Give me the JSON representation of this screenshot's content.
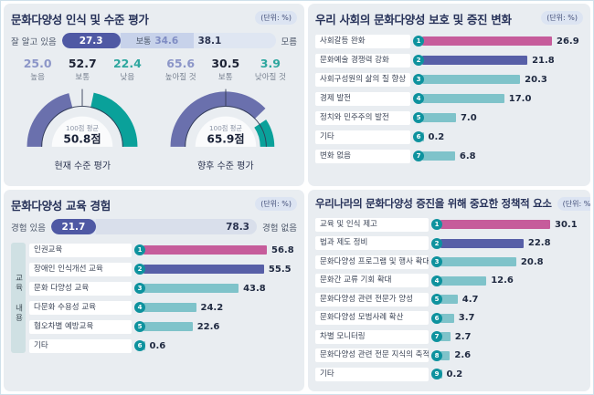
{
  "unit_label": "(단위: %)",
  "palette": {
    "pink": "#c65c9b",
    "purple": "#575fa7",
    "teal": "#7fc3ca",
    "badge_teal": "#0e929e",
    "stat_periwinkle": "#8c96c8",
    "stat_dark": "#1d2335",
    "stat_teal": "#2ea79f",
    "gauge_purple": "#6a70ad",
    "gauge_teal": "#0aa19a"
  },
  "chart_data": [
    {
      "id": "awareness",
      "type": "bar",
      "subtype": "stacked-bar-with-gauges",
      "title": "문화다양성 인식 및 수준 평가",
      "unit": "(단위: %)",
      "stacked_bar": {
        "left_label": "잘 알고 있음",
        "right_label": "모름",
        "categories": [
          "잘 알고 있음",
          "보통",
          "모름"
        ],
        "values": [
          27.3,
          34.6,
          38.1
        ],
        "seg1": {
          "value": 27.3,
          "text": "27.3"
        },
        "seg2": {
          "value": 34.6,
          "label": "보통",
          "text": "34.6"
        },
        "seg3": {
          "value": 38.1,
          "text": "38.1"
        }
      },
      "stat_groups": [
        {
          "items": [
            {
              "value": "25.0",
              "label": "높음",
              "color": "stat_periwinkle"
            },
            {
              "value": "52.7",
              "label": "보통",
              "color": "stat_dark"
            },
            {
              "value": "22.4",
              "label": "낮음",
              "color": "stat_teal"
            }
          ]
        },
        {
          "items": [
            {
              "value": "65.6",
              "label": "높아질 것",
              "color": "stat_periwinkle"
            },
            {
              "value": "30.5",
              "label": "보통",
              "color": "stat_dark"
            },
            {
              "value": "3.9",
              "label": "낮아질 것",
              "color": "stat_teal"
            }
          ]
        }
      ],
      "gauges": [
        {
          "avg_label": "100점 평균",
          "score": 50.8,
          "score_text": "50.8점",
          "caption": "현재 수준 평가"
        },
        {
          "avg_label": "100점 평균",
          "score": 65.9,
          "score_text": "65.9점",
          "caption": "향후 수준 평가"
        }
      ]
    },
    {
      "id": "change",
      "type": "bar",
      "title": "우리 사회의 문화다양성 보호 및 증진 변화",
      "unit": "(단위: %)",
      "rows": [
        {
          "label": "사회갈등 완화",
          "value": 26.9,
          "color": "pink"
        },
        {
          "label": "문화예술 경쟁력 강화",
          "value": 21.8,
          "color": "purple"
        },
        {
          "label": "사회구성원의 삶의 질 향상",
          "value": 20.3,
          "color": "teal"
        },
        {
          "label": "경제 발전",
          "value": 17.0,
          "color": "teal"
        },
        {
          "label": "정치와 민주주의 발전",
          "value": 7.0,
          "color": "teal"
        },
        {
          "label": "기타",
          "value": 0.2,
          "color": "teal"
        },
        {
          "label": "변화 없음",
          "value": 6.8,
          "color": "teal"
        }
      ]
    },
    {
      "id": "education",
      "type": "bar",
      "subtype": "stacked-bar-with-bars",
      "title": "문화다양성 교육 경험",
      "unit": "(단위: %)",
      "stacked_bar": {
        "left_label": "경험 있음",
        "right_label": "경험 없음",
        "categories": [
          "경험 있음",
          "경험 없음"
        ],
        "values": [
          21.7,
          78.3
        ],
        "seg1": {
          "value": 21.7,
          "text": "21.7"
        },
        "seg2": {
          "value": 78.3,
          "text": "78.3"
        }
      },
      "side_label": "교육 내용",
      "rows": [
        {
          "label": "인권교육",
          "value": 56.8,
          "color": "pink"
        },
        {
          "label": "장애인 인식개선 교육",
          "value": 55.5,
          "color": "purple"
        },
        {
          "label": "문화 다양성 교육",
          "value": 43.8,
          "color": "teal"
        },
        {
          "label": "다문화 수용성 교육",
          "value": 24.2,
          "color": "teal"
        },
        {
          "label": "혐오차별 예방교육",
          "value": 22.6,
          "color": "teal"
        },
        {
          "label": "기타",
          "value": 0.6,
          "color": "teal"
        }
      ]
    },
    {
      "id": "policy",
      "type": "bar",
      "title": "우리나라의 문화다양성 증진을 위해 중요한 정책적 요소",
      "unit": "(단위: %)",
      "rows": [
        {
          "label": "교육 및 인식 제고",
          "value": 30.1,
          "color": "pink"
        },
        {
          "label": "법과 제도 정비",
          "value": 22.8,
          "color": "purple"
        },
        {
          "label": "문화다양성 프로그램 및 행사 확대",
          "value": 20.8,
          "color": "teal"
        },
        {
          "label": "문화간 교류 기회 확대",
          "value": 12.6,
          "color": "teal"
        },
        {
          "label": "문화다양성 관련 전문가 양성",
          "value": 4.7,
          "color": "teal"
        },
        {
          "label": "문화다양성 모범사례 확산",
          "value": 3.7,
          "color": "teal"
        },
        {
          "label": "차별 모니터링",
          "value": 2.7,
          "color": "teal"
        },
        {
          "label": "문화다양성 관련 전문 지식의 축적",
          "value": 2.6,
          "color": "teal"
        },
        {
          "label": "기타",
          "value": 0.2,
          "color": "teal"
        }
      ]
    }
  ]
}
